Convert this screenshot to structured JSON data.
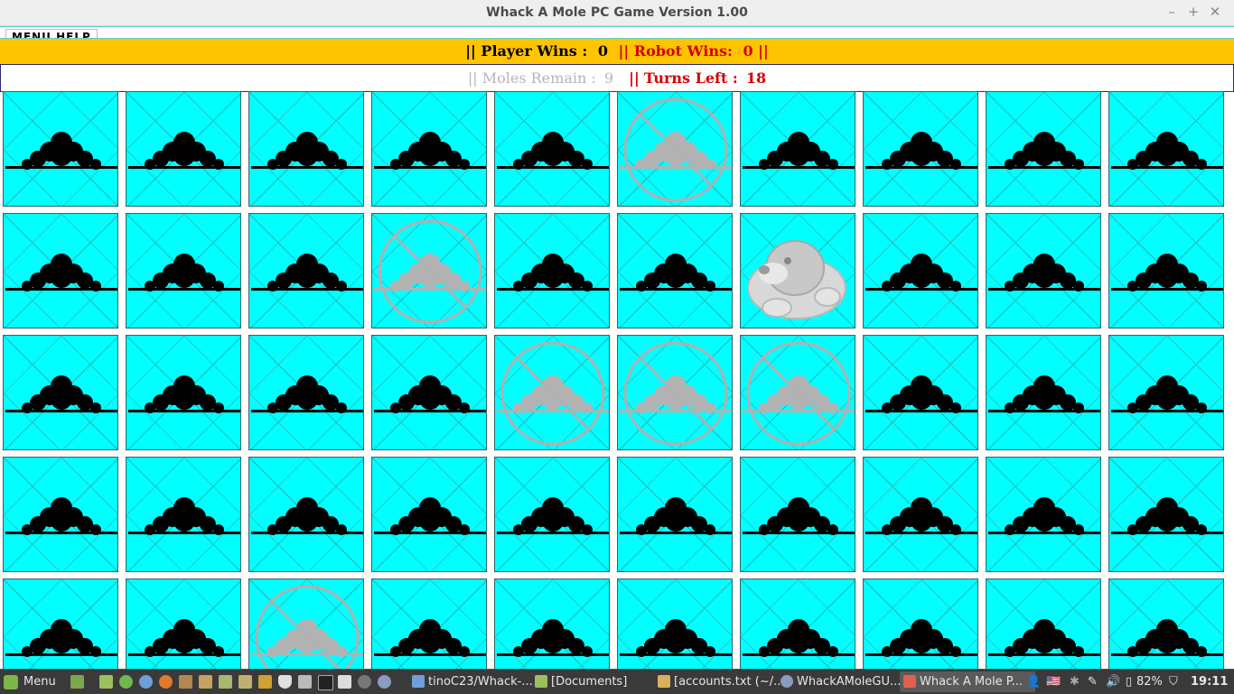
{
  "window": {
    "title": "Whack A Mole PC Game Version 1.00",
    "minimize_glyph": "–",
    "maximize_glyph": "+",
    "close_glyph": "✕"
  },
  "menu": {
    "label": "MENU   HELP"
  },
  "score": {
    "sep_open": "||",
    "player_label": "Player Wins :",
    "player_value": "0",
    "sep_mid": "||",
    "robot_label": "Robot Wins:",
    "robot_value": "0",
    "sep_close": "||"
  },
  "status": {
    "sep1": "||",
    "moles_label": "Moles Remain :",
    "moles_value": "9",
    "sep2": "||",
    "turns_label": "Turns Left :",
    "turns_value": "18"
  },
  "grid": {
    "rows": 5,
    "cols": 10,
    "cell_background": "#00ffff",
    "cells": [
      [
        "hill",
        "hill",
        "hill",
        "hill",
        "hill",
        "blocked",
        "hill",
        "hill",
        "hill",
        "hill"
      ],
      [
        "hill",
        "hill",
        "hill",
        "blocked",
        "hill",
        "hill",
        "mole",
        "hill",
        "hill",
        "hill"
      ],
      [
        "hill",
        "hill",
        "hill",
        "hill",
        "blocked",
        "blocked",
        "blocked",
        "hill",
        "hill",
        "hill"
      ],
      [
        "hill",
        "hill",
        "hill",
        "hill",
        "hill",
        "hill",
        "hill",
        "hill",
        "hill",
        "hill"
      ],
      [
        "hill",
        "hill",
        "blocked",
        "hill",
        "hill",
        "hill",
        "hill",
        "hill",
        "hill",
        "hill"
      ]
    ]
  },
  "taskbar": {
    "start_label": "Menu",
    "tasks": [
      {
        "label": "tinoC23/Whack-...",
        "icon": "browser-icon"
      },
      {
        "label": "[Documents]",
        "icon": "folder-icon"
      },
      {
        "label": "[accounts.txt (~/...",
        "icon": "text-editor-icon"
      },
      {
        "label": "WhackAMoleGU...",
        "icon": "ide-icon"
      },
      {
        "label": "Whack A Mole P...",
        "icon": "java-icon"
      }
    ],
    "battery": "82%",
    "clock": "19:11"
  }
}
